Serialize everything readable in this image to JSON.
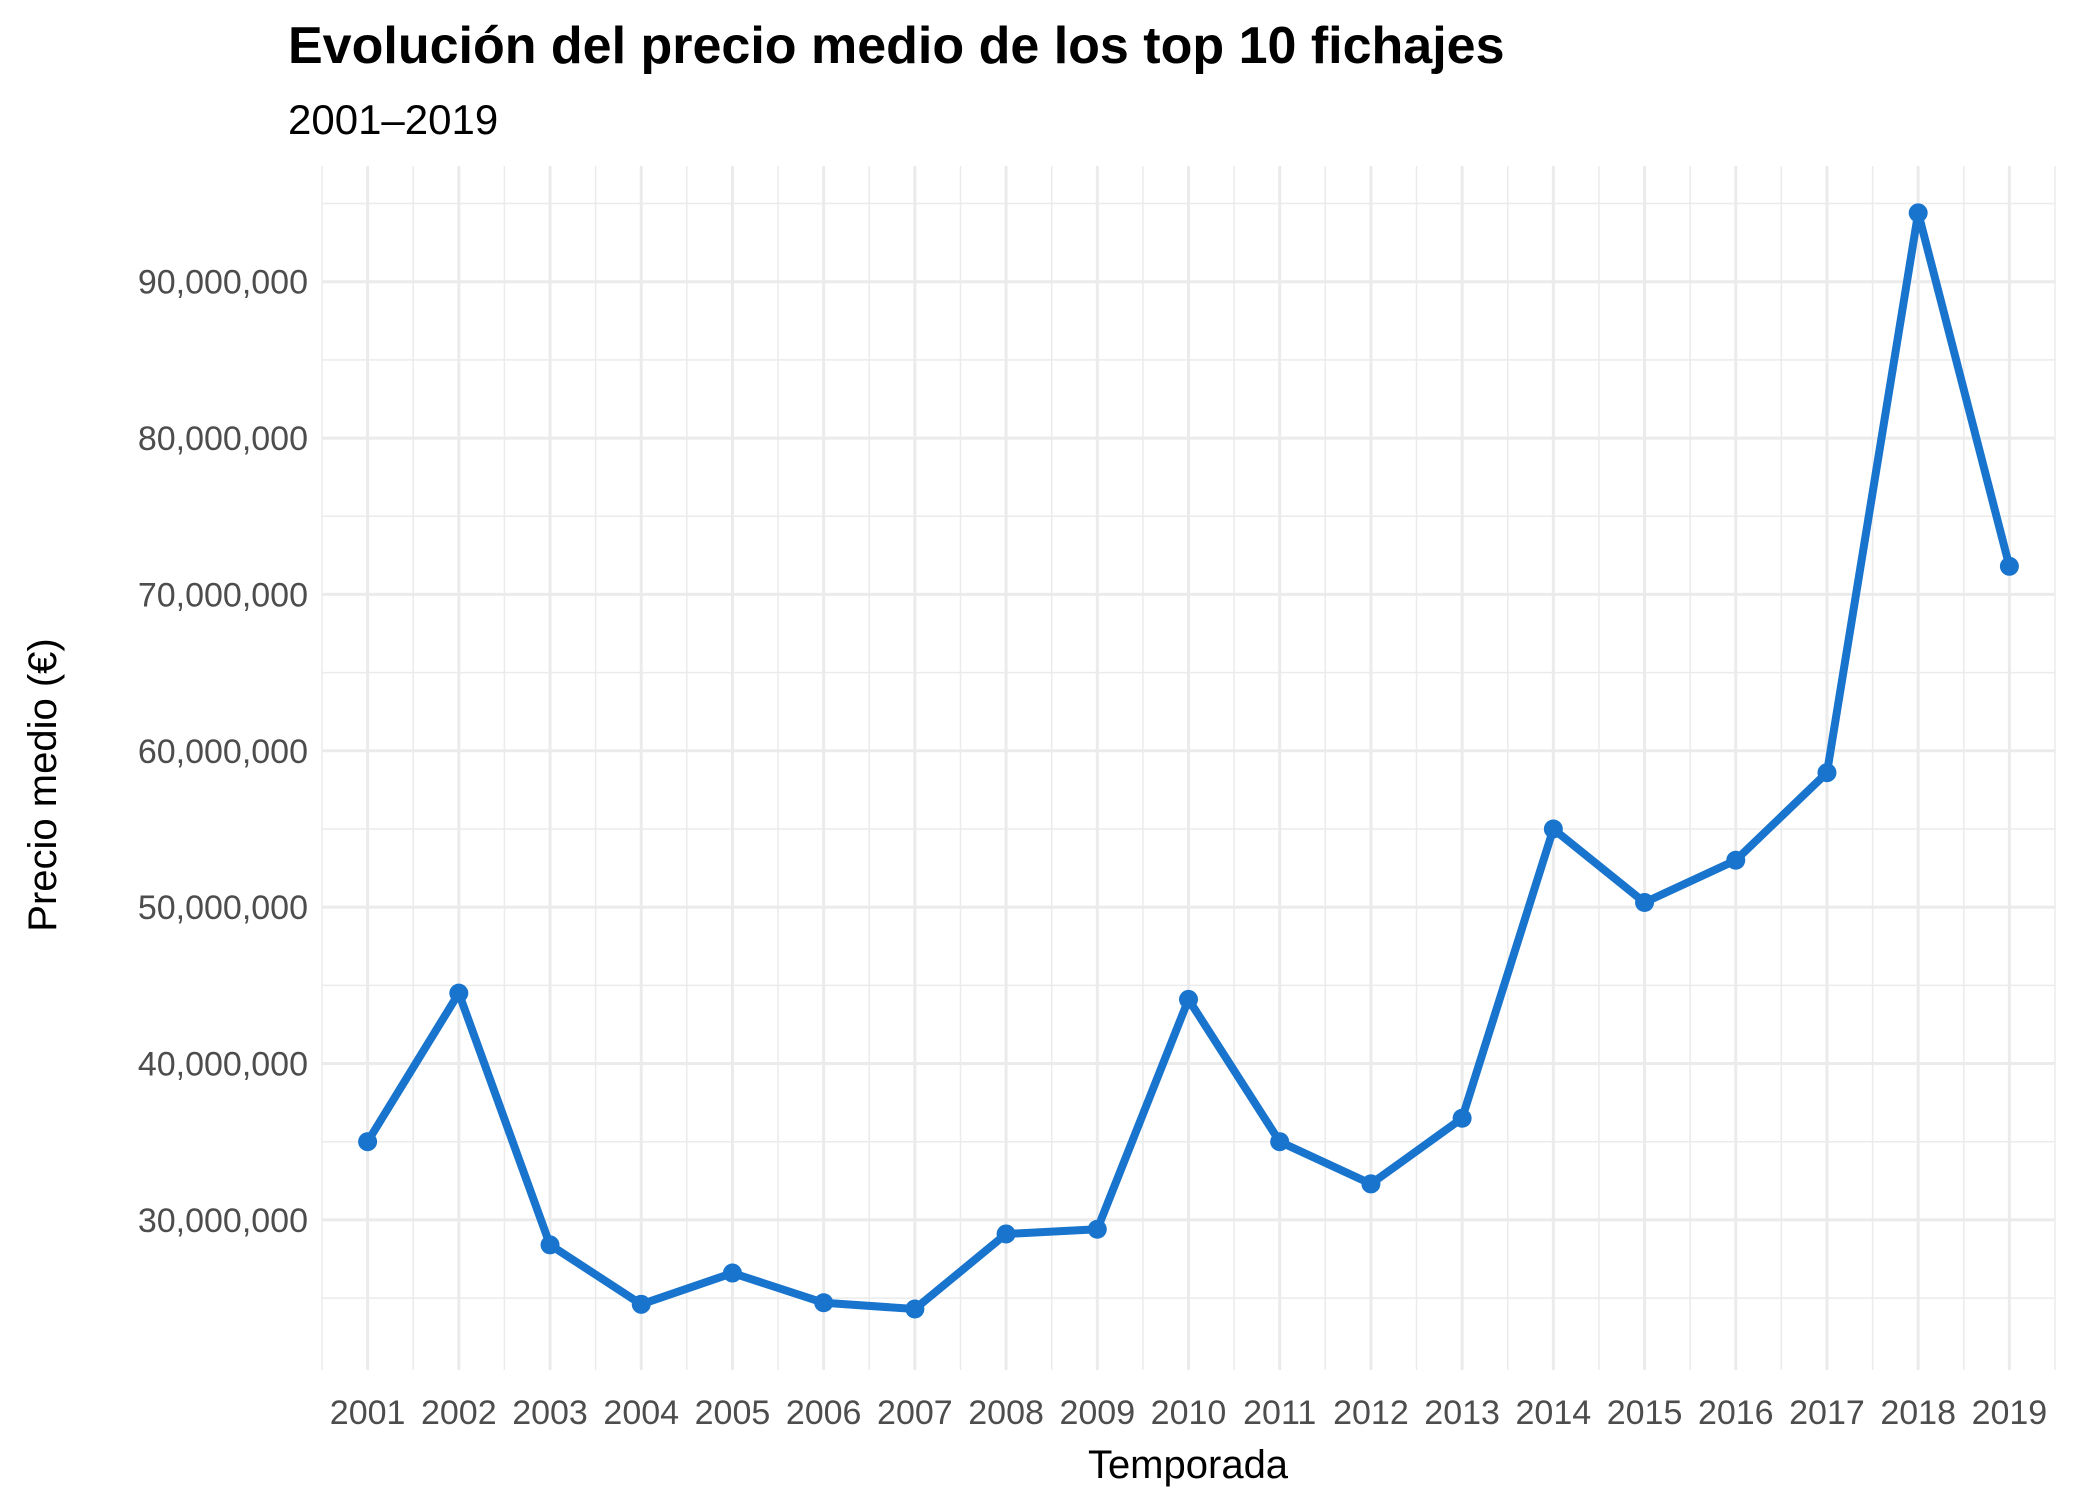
{
  "chart_data": {
    "type": "line",
    "title": "Evolución del precio medio de los top 10 fichajes",
    "subtitle": "2001–2019",
    "xlabel": "Temporada",
    "ylabel": "Precio medio (€)",
    "x": [
      2001,
      2002,
      2003,
      2004,
      2005,
      2006,
      2007,
      2008,
      2009,
      2010,
      2011,
      2012,
      2013,
      2014,
      2015,
      2016,
      2017,
      2018,
      2019
    ],
    "x_tick_labels": [
      "2001",
      "2002",
      "2003",
      "2004",
      "2005",
      "2006",
      "2007",
      "2008",
      "2009",
      "2010",
      "2011",
      "2012",
      "2013",
      "2014",
      "2015",
      "2016",
      "2017",
      "2018",
      "2019"
    ],
    "series": [
      {
        "name": "Precio medio",
        "values": [
          35000000,
          44500000,
          28400000,
          24600000,
          26600000,
          24700000,
          24300000,
          29100000,
          29400000,
          44100000,
          35000000,
          32300000,
          36500000,
          55000000,
          50300000,
          53000000,
          58600000,
          94400000,
          71800000
        ]
      }
    ],
    "y_ticks": [
      30000000,
      40000000,
      50000000,
      60000000,
      70000000,
      80000000,
      90000000
    ],
    "y_tick_labels": [
      "30,000,000",
      "40,000,000",
      "50,000,000",
      "60,000,000",
      "70,000,000",
      "80,000,000",
      "90,000,000"
    ],
    "xlim": [
      2000.5,
      2019.5
    ],
    "ylim": [
      20400000,
      97400000
    ],
    "grid": true,
    "legend": "none",
    "colors": {
      "line": "#1874CD",
      "grid": "#EBEBEB"
    }
  }
}
